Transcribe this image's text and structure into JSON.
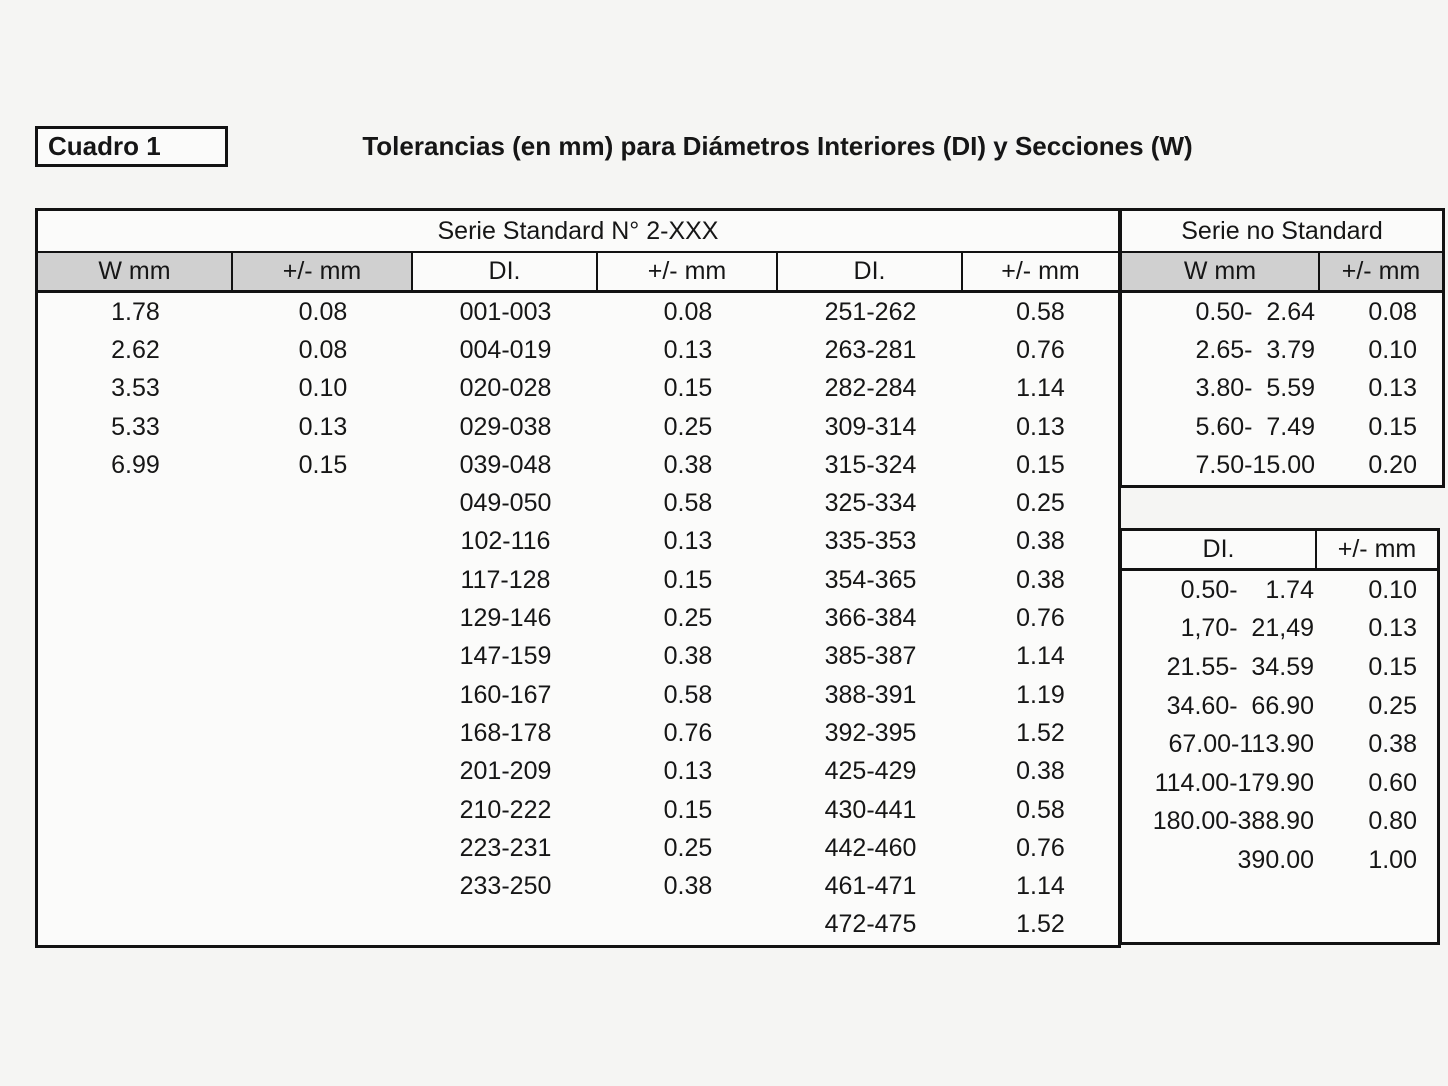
{
  "page": {
    "label": "Cuadro 1",
    "title": "Tolerancias (en mm) para Diámetros Interiores (DI) y Secciones (W)"
  },
  "colors": {
    "header_gray": "#d0d0d0",
    "border": "#121212",
    "page_bg": "#f5f5f3",
    "cell_bg": "#fbfbfa"
  },
  "main_table": {
    "group_header": "Serie Standard N° 2-XXX",
    "columns": [
      "W mm",
      "+/- mm",
      "DI.",
      "+/- mm",
      "DI.",
      "+/- mm"
    ],
    "gray_header_columns": [
      0,
      1
    ],
    "rows": [
      [
        "1.78",
        "0.08",
        "001-003",
        "0.08",
        "251-262",
        "0.58"
      ],
      [
        "2.62",
        "0.08",
        "004-019",
        "0.13",
        "263-281",
        "0.76"
      ],
      [
        "3.53",
        "0.10",
        "020-028",
        "0.15",
        "282-284",
        "1.14"
      ],
      [
        "5.33",
        "0.13",
        "029-038",
        "0.25",
        "309-314",
        "0.13"
      ],
      [
        "6.99",
        "0.15",
        "039-048",
        "0.38",
        "315-324",
        "0.15"
      ],
      [
        "",
        "",
        "049-050",
        "0.58",
        "325-334",
        "0.25"
      ],
      [
        "",
        "",
        "102-116",
        "0.13",
        "335-353",
        "0.38"
      ],
      [
        "",
        "",
        "117-128",
        "0.15",
        "354-365",
        "0.38"
      ],
      [
        "",
        "",
        "129-146",
        "0.25",
        "366-384",
        "0.76"
      ],
      [
        "",
        "",
        "147-159",
        "0.38",
        "385-387",
        "1.14"
      ],
      [
        "",
        "",
        "160-167",
        "0.58",
        "388-391",
        "1.19"
      ],
      [
        "",
        "",
        "168-178",
        "0.76",
        "392-395",
        "1.52"
      ],
      [
        "",
        "",
        "201-209",
        "0.13",
        "425-429",
        "0.38"
      ],
      [
        "",
        "",
        "210-222",
        "0.15",
        "430-441",
        "0.58"
      ],
      [
        "",
        "",
        "223-231",
        "0.25",
        "442-460",
        "0.76"
      ],
      [
        "",
        "",
        "233-250",
        "0.38",
        "461-471",
        "1.14"
      ],
      [
        "",
        "",
        "",
        "",
        "472-475",
        "1.52"
      ]
    ]
  },
  "no_standard_table": {
    "group_header": "Serie no Standard",
    "columns": [
      "W mm",
      "+/- mm"
    ],
    "gray_header_columns": [
      0,
      1
    ],
    "rows": [
      [
        "0.50-  2.64",
        "0.08"
      ],
      [
        "2.65-  3.79",
        "0.10"
      ],
      [
        "3.80-  5.59",
        "0.13"
      ],
      [
        "5.60-  7.49",
        "0.15"
      ],
      [
        "7.50-15.00",
        "0.20"
      ]
    ]
  },
  "di_table": {
    "columns": [
      "DI.",
      "+/- mm"
    ],
    "gray_header_columns": [],
    "rows": [
      [
        "0.50-    1.74",
        "0.10"
      ],
      [
        "1,70-  21,49",
        "0.13"
      ],
      [
        "21.55-  34.59",
        "0.15"
      ],
      [
        "34.60-  66.90",
        "0.25"
      ],
      [
        "67.00-113.90",
        "0.38"
      ],
      [
        "114.00-179.90",
        "0.60"
      ],
      [
        "180.00-388.90",
        "0.80"
      ],
      [
        "390.00",
        "1.00"
      ]
    ]
  }
}
